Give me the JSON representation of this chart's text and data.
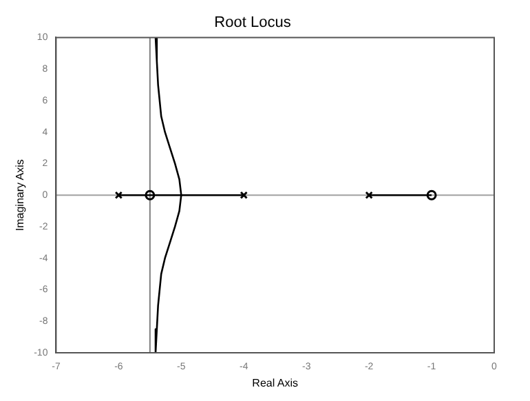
{
  "chart_data": {
    "type": "line",
    "title": "Root Locus",
    "xlabel": "Real Axis",
    "ylabel": "Imaginary Axis",
    "xlim": [
      -7,
      0
    ],
    "xticks": [
      -7,
      -6,
      -5,
      -4,
      -3,
      -2,
      -1,
      0
    ],
    "ylim": [
      -10,
      10
    ],
    "yticks": [
      -10,
      -8,
      -6,
      -4,
      -2,
      0,
      2,
      4,
      6,
      8,
      10
    ],
    "grid": false,
    "legend": false,
    "ref_lines": [
      {
        "axis": "x",
        "value": -5.5,
        "color": "#808080"
      },
      {
        "axis": "y",
        "value": 0,
        "color": "#a0a0a0"
      }
    ],
    "series": [
      {
        "color": "#000000",
        "x": [
          -6,
          -4
        ],
        "values": [
          0,
          0
        ]
      },
      {
        "color": "#000000",
        "x": [
          -5.41,
          -5.39,
          -5.37,
          -5.32,
          -5.26,
          -5.18,
          -5.1,
          -5.03,
          -5,
          -5.03,
          -5.1,
          -5.18,
          -5.26,
          -5.32,
          -5.37,
          -5.39,
          -5.41
        ],
        "values": [
          10,
          8.5,
          7,
          5,
          4,
          3,
          2,
          1,
          0,
          -1,
          -2,
          -3,
          -4,
          -5,
          -7,
          -8.5,
          -10
        ]
      },
      {
        "color": "#000000",
        "x": [
          -2,
          -1
        ],
        "values": [
          0,
          0
        ]
      },
      {
        "type": "scatter",
        "marker": "cross",
        "color": "#000000",
        "x": [
          -6,
          -4,
          -2
        ],
        "values": [
          0,
          0,
          0
        ]
      },
      {
        "type": "scatter",
        "marker": "circle",
        "color": "#000000",
        "x": [
          -5.5,
          -1
        ],
        "values": [
          0,
          0
        ]
      }
    ]
  }
}
